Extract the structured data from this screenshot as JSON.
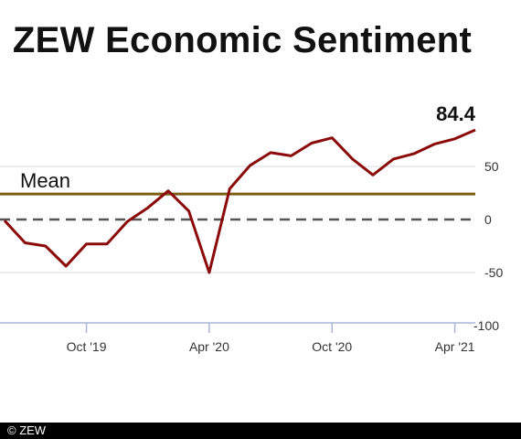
{
  "chart_data": {
    "type": "line",
    "title": "ZEW Economic Sentiment",
    "xlabel": "",
    "ylabel": "",
    "x": [
      "2019-06",
      "2019-07",
      "2019-08",
      "2019-09",
      "2019-10",
      "2019-11",
      "2019-12",
      "2020-01",
      "2020-02",
      "2020-03",
      "2020-04",
      "2020-05",
      "2020-06",
      "2020-07",
      "2020-08",
      "2020-09",
      "2020-10",
      "2020-11",
      "2020-12",
      "2021-01",
      "2021-02",
      "2021-03",
      "2021-04",
      "2021-05"
    ],
    "series": [
      {
        "name": "",
        "color": "#8b0a0a",
        "values": [
          -1,
          -22,
          -25,
          -44,
          -23,
          -23,
          -2,
          11,
          27,
          8,
          -50,
          29,
          51,
          63,
          60,
          72,
          77,
          57,
          42,
          57,
          62,
          71,
          76,
          84.4
        ]
      }
    ],
    "x_ticks": [
      {
        "label": "Oct '19",
        "x": "2019-10"
      },
      {
        "label": "Apr '20",
        "x": "2020-04"
      },
      {
        "label": "Oct '20",
        "x": "2020-10"
      },
      {
        "label": "Apr '21",
        "x": "2021-04"
      }
    ],
    "y_ticks": [
      {
        "label": "50",
        "value": 50
      },
      {
        "label": "0",
        "value": 0
      },
      {
        "label": "-50",
        "value": -50
      },
      {
        "label": "-100",
        "value": -100
      }
    ],
    "ylim": [
      -100,
      100
    ],
    "grid": true,
    "mean": {
      "label": "Mean",
      "value": 24,
      "color": "#7a5e14"
    },
    "zero_line": {
      "value": 0,
      "color": "#555555",
      "style": "dashed"
    },
    "last_value_label": "84.4"
  },
  "footer": {
    "copyright": "© ZEW"
  }
}
